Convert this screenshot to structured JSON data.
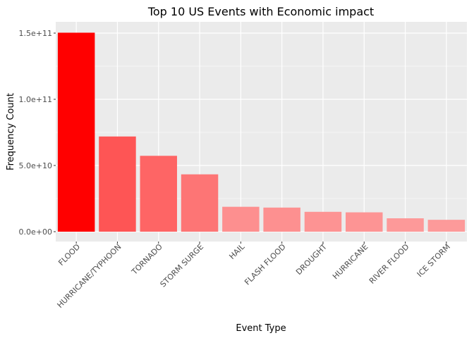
{
  "chart_data": {
    "type": "bar",
    "title": "Top 10 US Events with Economic impact",
    "xlabel": "Event Type",
    "ylabel": "Frequency Count",
    "categories": [
      "FLOOD",
      "HURRICANE/TYPHOON",
      "TORNADO",
      "STORM SURGE",
      "HAIL",
      "FLASH FLOOD",
      "DROUGHT",
      "HURRICANE",
      "RIVER FLOOD",
      "ICE STORM"
    ],
    "values": [
      150300000000,
      71900000000,
      57300000000,
      43300000000,
      18800000000,
      18200000000,
      15000000000,
      14600000000,
      10100000000,
      8970000000
    ],
    "ylim": [
      0,
      155000000000
    ],
    "yticks": [
      0,
      50000000000,
      100000000000,
      150000000000
    ],
    "ytick_labels": [
      "0.0e+00",
      "5.0e+10",
      "1.0e+11",
      "1.5e+11"
    ],
    "grid": true,
    "legend": "none",
    "colors": {
      "panel_background": "#ebebeb",
      "grid": "#ffffff",
      "bar_max": "#ff0000",
      "bar_min": "#fd9a9a"
    }
  }
}
